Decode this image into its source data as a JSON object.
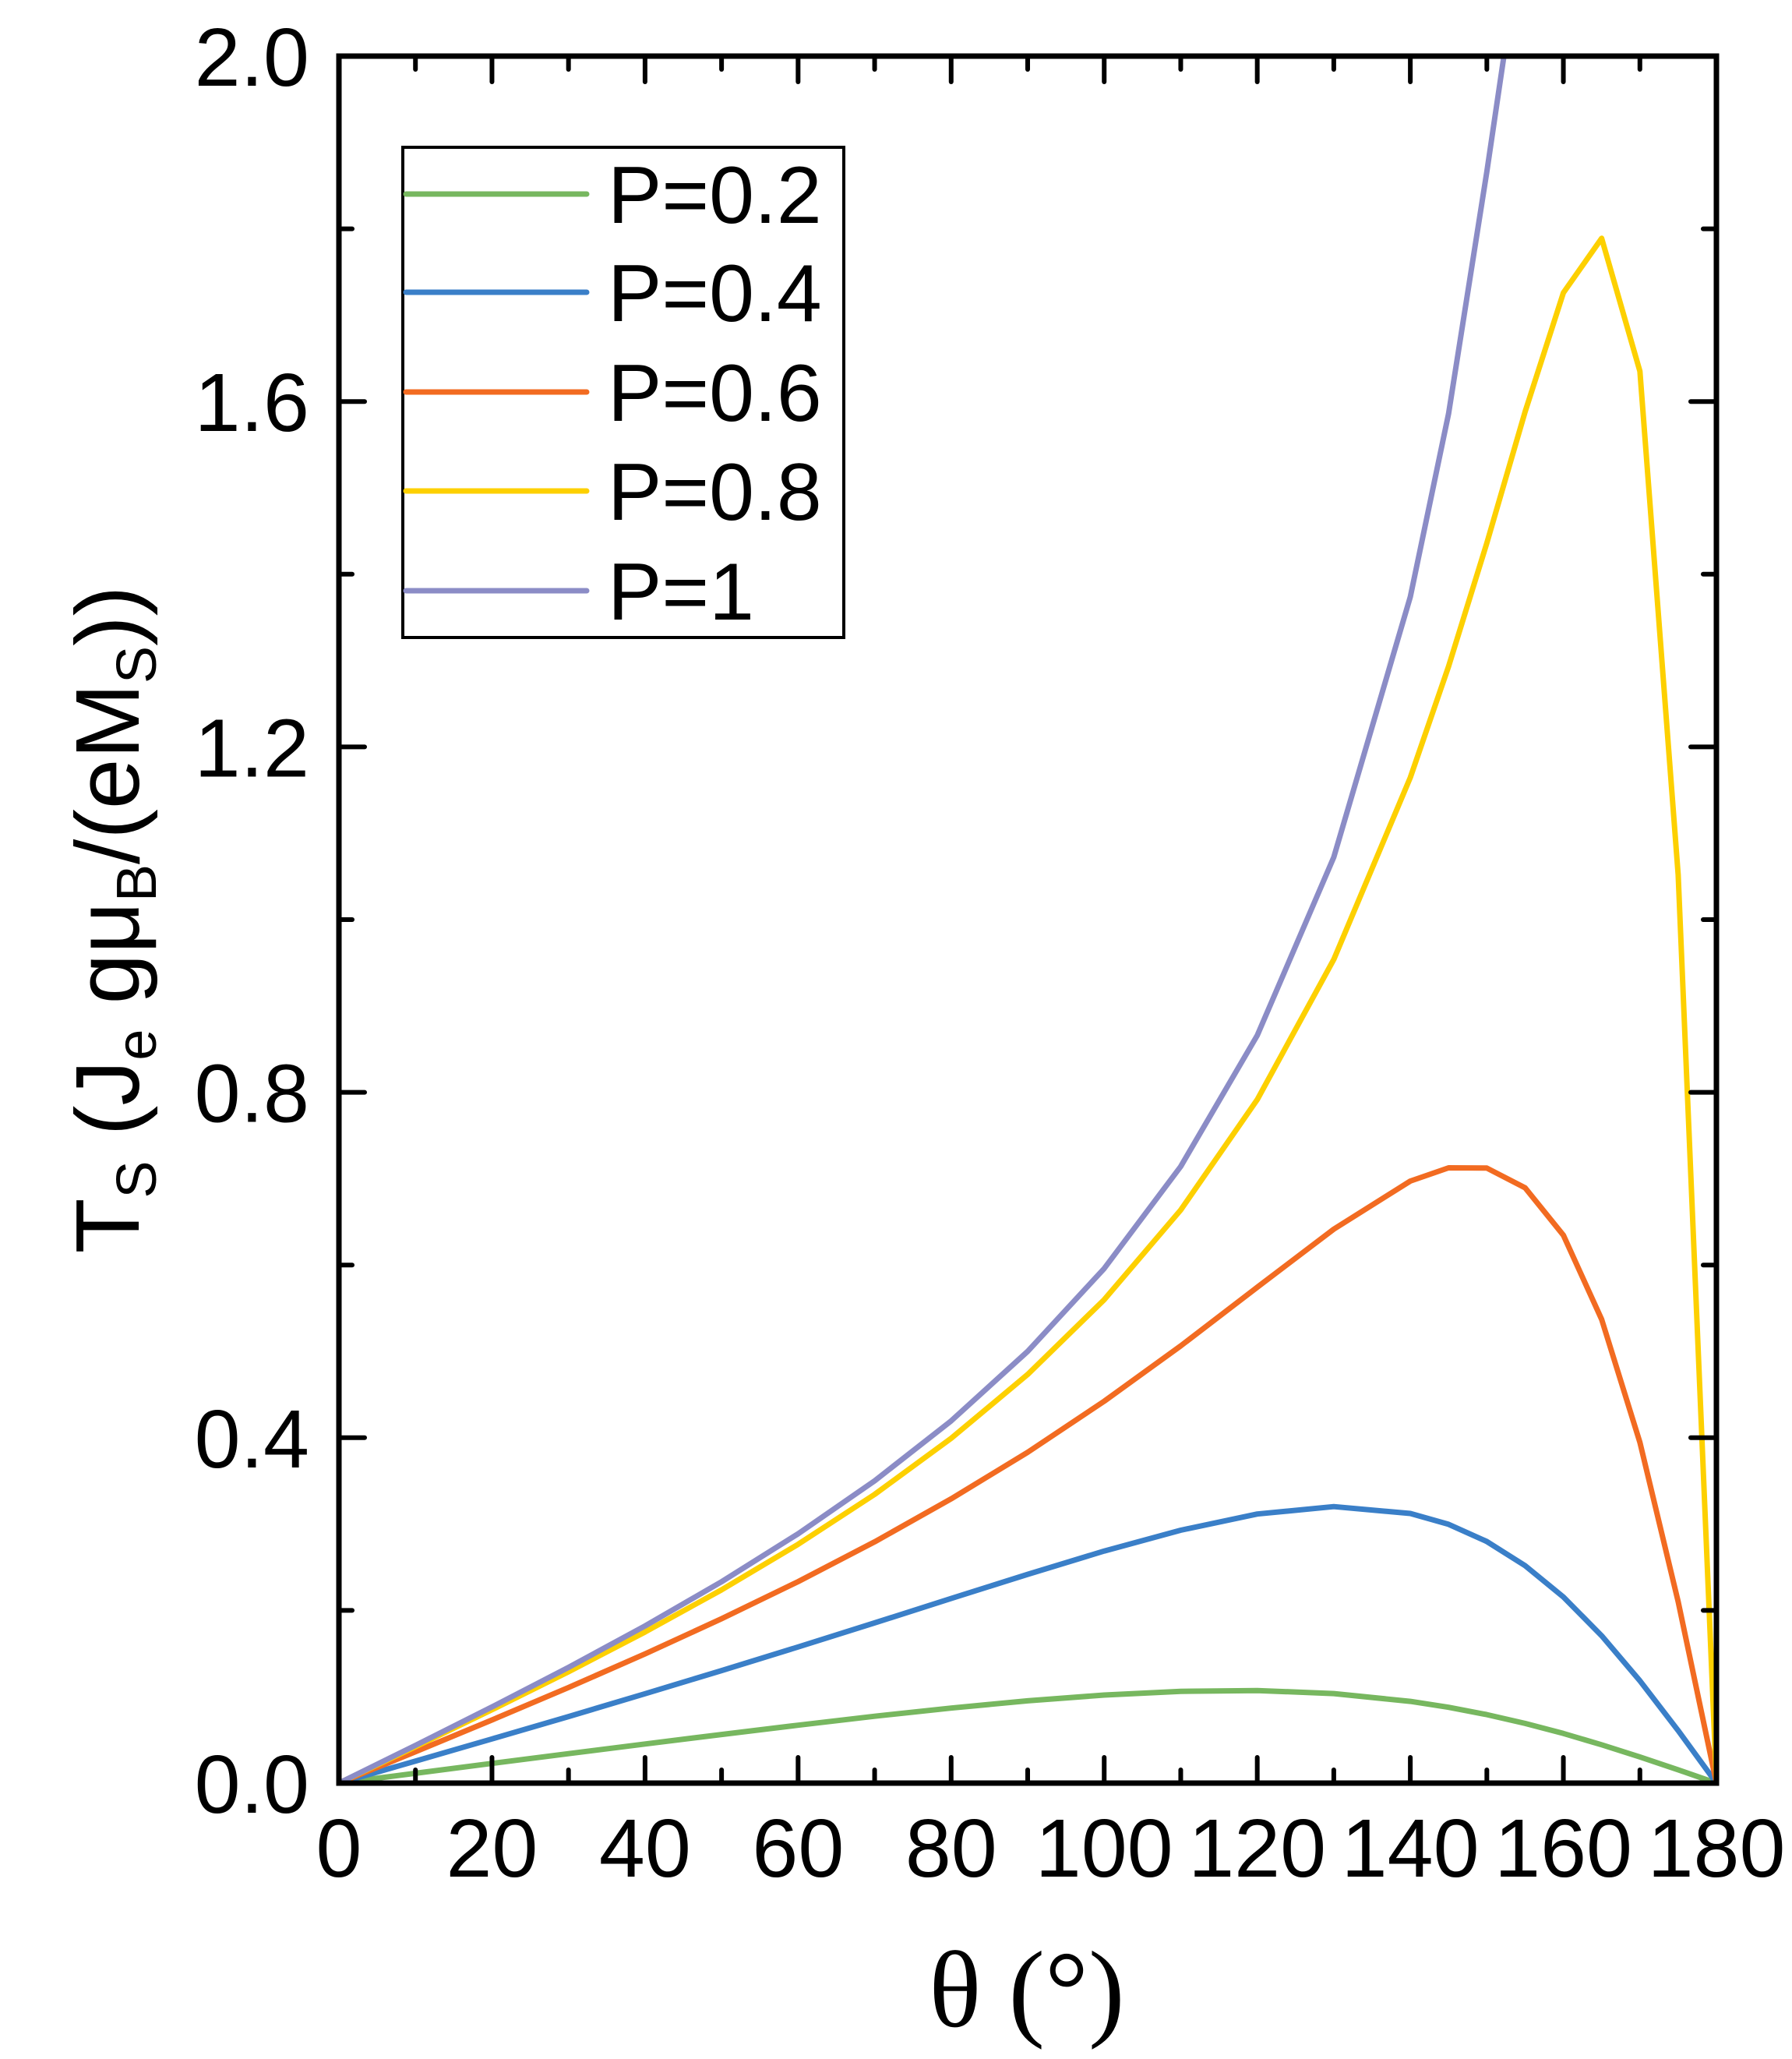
{
  "chart_data": {
    "type": "line",
    "title": "",
    "xlabel": "θ (°)",
    "ylabel": {
      "parts": [
        "T",
        "S",
        " (J",
        "e",
        " gμ",
        "B",
        "/(eM",
        "S",
        "))"
      ]
    },
    "xlim": [
      0,
      180
    ],
    "ylim": [
      0,
      2.0
    ],
    "xticks": [
      "0",
      "20",
      "40",
      "60",
      "80",
      "100",
      "120",
      "140",
      "160",
      "180"
    ],
    "yticks": [
      "0.0",
      "0.4",
      "0.8",
      "1.2",
      "1.6",
      "2.0"
    ],
    "grid": false,
    "legend_position": "top-left",
    "x": [
      0,
      10,
      20,
      30,
      40,
      50,
      60,
      70,
      80,
      90,
      100,
      110,
      120,
      130,
      140,
      145,
      150,
      155,
      160,
      165,
      170,
      175,
      180
    ],
    "series": [
      {
        "name": "P=0.2",
        "color": "#77b75f",
        "values": [
          0,
          0.0114,
          0.0228,
          0.0341,
          0.0453,
          0.0563,
          0.0671,
          0.0774,
          0.0869,
          0.0953,
          0.102,
          0.1063,
          0.1072,
          0.1037,
          0.0947,
          0.0878,
          0.0793,
          0.0691,
          0.0575,
          0.0444,
          0.0303,
          0.0154,
          0
        ]
      },
      {
        "name": "P=0.4",
        "color": "#3a7fc8",
        "values": [
          0,
          0.0255,
          0.0512,
          0.0771,
          0.1035,
          0.1303,
          0.1577,
          0.1856,
          0.2138,
          0.2418,
          0.2688,
          0.2929,
          0.3116,
          0.3202,
          0.3123,
          0.2997,
          0.2798,
          0.2519,
          0.2155,
          0.1707,
          0.1185,
          0.0608,
          0
        ]
      },
      {
        "name": "P=0.6",
        "color": "#f26b21",
        "values": [
          0,
          0.0363,
          0.0731,
          0.1107,
          0.1496,
          0.1903,
          0.2333,
          0.2794,
          0.3292,
          0.3831,
          0.4422,
          0.5063,
          0.5743,
          0.6415,
          0.6972,
          0.7125,
          0.7123,
          0.6894,
          0.6345,
          0.537,
          0.3946,
          0.2101,
          0
        ]
      },
      {
        "name": "P=0.8",
        "color": "#fdd000",
        "values": [
          0,
          0.0421,
          0.0849,
          0.129,
          0.175,
          0.2238,
          0.2765,
          0.3344,
          0.3993,
          0.4733,
          0.5598,
          0.6637,
          0.7916,
          0.9539,
          1.1645,
          1.2931,
          1.436,
          1.588,
          1.726,
          1.789,
          1.635,
          1.052,
          0
        ]
      },
      {
        "name": "P=1",
        "color": "#8b8cc6",
        "values": [
          0,
          0.0437,
          0.0882,
          0.134,
          0.182,
          0.2332,
          0.2887,
          0.3501,
          0.4195,
          0.5,
          0.5959,
          0.7141,
          0.866,
          1.0723,
          1.3737,
          1.5858,
          1.866,
          2.1657,
          null,
          null,
          null,
          null,
          null
        ]
      }
    ]
  }
}
